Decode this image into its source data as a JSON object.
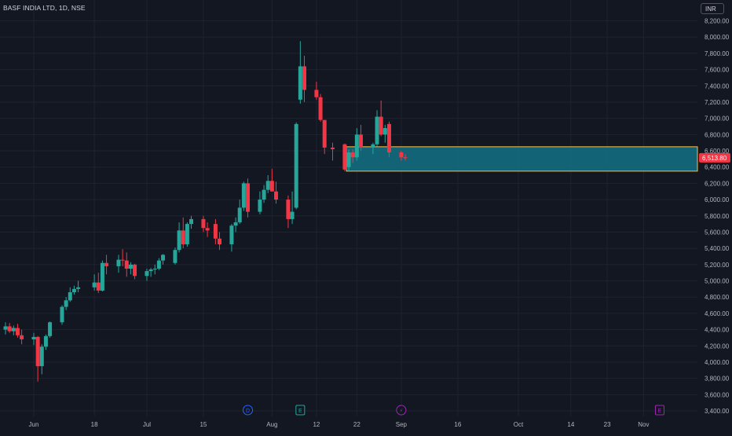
{
  "header": {
    "title": "BASF INDIA LTD, 1D, NSE",
    "currency": "INR"
  },
  "colors": {
    "background": "#131722",
    "grid": "#1f2330",
    "axis_text": "#b2b5be",
    "up": "#26a69a",
    "down": "#f23645",
    "zone_fill": "#137184",
    "zone_border": "#f7c04a",
    "price_label": "#f23645",
    "event_dividend": "#2962ff",
    "event_earnings_past": "#26a69a",
    "event_split": "#9c27b0",
    "event_earnings_future": "#9c27b0"
  },
  "chart_data": {
    "type": "candlestick",
    "y_axis": {
      "min": 3400,
      "max": 8200,
      "step": 200,
      "tick_labels": [
        "3,400.00",
        "3,600.00",
        "3,800.00",
        "4,000.00",
        "4,200.00",
        "4,400.00",
        "4,600.00",
        "4,800.00",
        "5,000.00",
        "5,200.00",
        "5,400.00",
        "5,600.00",
        "5,800.00",
        "6,000.00",
        "6,200.00",
        "6,400.00",
        "6,600.00",
        "6,800.00",
        "7,000.00",
        "7,200.00",
        "7,400.00",
        "7,600.00",
        "7,800.00",
        "8,000.00",
        "8,200.00"
      ]
    },
    "x_axis": {
      "tick_labels": [
        {
          "label": "Jun",
          "date": "2024-06-03"
        },
        {
          "label": "18",
          "date": "2024-06-18"
        },
        {
          "label": "Jul",
          "date": "2024-07-01"
        },
        {
          "label": "15",
          "date": "2024-07-15"
        },
        {
          "label": "Aug",
          "date": "2024-08-01"
        },
        {
          "label": "12",
          "date": "2024-08-12"
        },
        {
          "label": "22",
          "date": "2024-08-22"
        },
        {
          "label": "Sep",
          "date": "2024-09-02"
        },
        {
          "label": "16",
          "date": "2024-09-16"
        },
        {
          "label": "Oct",
          "date": "2024-10-01"
        },
        {
          "label": "14",
          "date": "2024-10-14"
        },
        {
          "label": "23",
          "date": "2024-10-23"
        },
        {
          "label": "Nov",
          "date": "2024-11-01"
        }
      ]
    },
    "last_price": 6513.8,
    "last_price_label": "6,513.80",
    "zone": {
      "top": 6650,
      "bottom": 6350,
      "start_date": "2024-08-20"
    },
    "events": [
      {
        "type": "dividend",
        "label": "D",
        "date": "2024-07-26"
      },
      {
        "type": "earnings",
        "label": "E",
        "date": "2024-08-08"
      },
      {
        "type": "split",
        "label": "⚡",
        "date": "2024-09-02"
      },
      {
        "type": "earnings",
        "label": "E",
        "date": "2024-11-05"
      }
    ],
    "candles": [
      {
        "d": "2024-05-27",
        "o": 4400,
        "h": 4490,
        "l": 4340,
        "c": 4440
      },
      {
        "d": "2024-05-28",
        "o": 4440,
        "h": 4480,
        "l": 4360,
        "c": 4380
      },
      {
        "d": "2024-05-29",
        "o": 4380,
        "h": 4450,
        "l": 4330,
        "c": 4420
      },
      {
        "d": "2024-05-30",
        "o": 4420,
        "h": 4470,
        "l": 4300,
        "c": 4330
      },
      {
        "d": "2024-05-31",
        "o": 4330,
        "h": 4400,
        "l": 4220,
        "c": 4280
      },
      {
        "d": "2024-06-03",
        "o": 4280,
        "h": 4360,
        "l": 4210,
        "c": 4310
      },
      {
        "d": "2024-06-04",
        "o": 4310,
        "h": 4320,
        "l": 3760,
        "c": 3950
      },
      {
        "d": "2024-06-05",
        "o": 3950,
        "h": 4220,
        "l": 3850,
        "c": 4190
      },
      {
        "d": "2024-06-06",
        "o": 4190,
        "h": 4340,
        "l": 4150,
        "c": 4320
      },
      {
        "d": "2024-06-07",
        "o": 4320,
        "h": 4500,
        "l": 4300,
        "c": 4490
      },
      {
        "d": "2024-06-10",
        "o": 4490,
        "h": 4700,
        "l": 4460,
        "c": 4680
      },
      {
        "d": "2024-06-11",
        "o": 4680,
        "h": 4800,
        "l": 4640,
        "c": 4760
      },
      {
        "d": "2024-06-12",
        "o": 4760,
        "h": 4920,
        "l": 4740,
        "c": 4860
      },
      {
        "d": "2024-06-13",
        "o": 4860,
        "h": 4940,
        "l": 4830,
        "c": 4900
      },
      {
        "d": "2024-06-14",
        "o": 4900,
        "h": 5000,
        "l": 4860,
        "c": 4920
      },
      {
        "d": "2024-06-18",
        "o": 4920,
        "h": 5080,
        "l": 4880,
        "c": 4980
      },
      {
        "d": "2024-06-19",
        "o": 4980,
        "h": 5100,
        "l": 4850,
        "c": 4880
      },
      {
        "d": "2024-06-20",
        "o": 4880,
        "h": 5250,
        "l": 4870,
        "c": 5220
      },
      {
        "d": "2024-06-21",
        "o": 5220,
        "h": 5320,
        "l": 5080,
        "c": 5180
      },
      {
        "d": "2024-06-24",
        "o": 5180,
        "h": 5320,
        "l": 5100,
        "c": 5260
      },
      {
        "d": "2024-06-25",
        "o": 5260,
        "h": 5390,
        "l": 5180,
        "c": 5250
      },
      {
        "d": "2024-06-26",
        "o": 5250,
        "h": 5350,
        "l": 5050,
        "c": 5150
      },
      {
        "d": "2024-06-27",
        "o": 5150,
        "h": 5230,
        "l": 5080,
        "c": 5200
      },
      {
        "d": "2024-06-28",
        "o": 5200,
        "h": 5210,
        "l": 5020,
        "c": 5060
      },
      {
        "d": "2024-07-01",
        "o": 5060,
        "h": 5150,
        "l": 5000,
        "c": 5120
      },
      {
        "d": "2024-07-02",
        "o": 5120,
        "h": 5160,
        "l": 5050,
        "c": 5140
      },
      {
        "d": "2024-07-03",
        "o": 5140,
        "h": 5200,
        "l": 5080,
        "c": 5150
      },
      {
        "d": "2024-07-04",
        "o": 5150,
        "h": 5280,
        "l": 5130,
        "c": 5250
      },
      {
        "d": "2024-07-05",
        "o": 5250,
        "h": 5330,
        "l": 5200,
        "c": 5320
      },
      {
        "d": "2024-07-08",
        "o": 5220,
        "h": 5410,
        "l": 5200,
        "c": 5380
      },
      {
        "d": "2024-07-09",
        "o": 5380,
        "h": 5720,
        "l": 5350,
        "c": 5620
      },
      {
        "d": "2024-07-10",
        "o": 5620,
        "h": 5780,
        "l": 5400,
        "c": 5450
      },
      {
        "d": "2024-07-11",
        "o": 5450,
        "h": 5720,
        "l": 5420,
        "c": 5700
      },
      {
        "d": "2024-07-12",
        "o": 5700,
        "h": 5800,
        "l": 5640,
        "c": 5760
      },
      {
        "d": "2024-07-15",
        "o": 5760,
        "h": 5800,
        "l": 5600,
        "c": 5650
      },
      {
        "d": "2024-07-16",
        "o": 5650,
        "h": 5720,
        "l": 5540,
        "c": 5620
      },
      {
        "d": "2024-07-18",
        "o": 5700,
        "h": 5760,
        "l": 5450,
        "c": 5520
      },
      {
        "d": "2024-07-19",
        "o": 5520,
        "h": 5600,
        "l": 5380,
        "c": 5450
      },
      {
        "d": "2024-07-22",
        "o": 5450,
        "h": 5700,
        "l": 5360,
        "c": 5680
      },
      {
        "d": "2024-07-23",
        "o": 5680,
        "h": 5780,
        "l": 5600,
        "c": 5720
      },
      {
        "d": "2024-07-24",
        "o": 5720,
        "h": 6000,
        "l": 5700,
        "c": 5900
      },
      {
        "d": "2024-07-25",
        "o": 5900,
        "h": 6220,
        "l": 5860,
        "c": 6200
      },
      {
        "d": "2024-07-26",
        "o": 6200,
        "h": 6260,
        "l": 5780,
        "c": 5850
      },
      {
        "d": "2024-07-29",
        "o": 5850,
        "h": 6100,
        "l": 5820,
        "c": 6000
      },
      {
        "d": "2024-07-30",
        "o": 6000,
        "h": 6180,
        "l": 5960,
        "c": 6120
      },
      {
        "d": "2024-07-31",
        "o": 6120,
        "h": 6300,
        "l": 6080,
        "c": 6230
      },
      {
        "d": "2024-08-01",
        "o": 6230,
        "h": 6380,
        "l": 6100,
        "c": 6100
      },
      {
        "d": "2024-08-02",
        "o": 6100,
        "h": 6220,
        "l": 5950,
        "c": 6000
      },
      {
        "d": "2024-08-05",
        "o": 6000,
        "h": 6050,
        "l": 5650,
        "c": 5760
      },
      {
        "d": "2024-08-06",
        "o": 5760,
        "h": 6100,
        "l": 5700,
        "c": 5850
      },
      {
        "d": "2024-08-07",
        "o": 5900,
        "h": 6950,
        "l": 5880,
        "c": 6930
      },
      {
        "d": "2024-08-08",
        "o": 7230,
        "h": 7950,
        "l": 7180,
        "c": 7640
      },
      {
        "d": "2024-08-09",
        "o": 7640,
        "h": 7770,
        "l": 7200,
        "c": 7350
      },
      {
        "d": "2024-08-12",
        "o": 7350,
        "h": 7450,
        "l": 7230,
        "c": 7260
      },
      {
        "d": "2024-08-13",
        "o": 7260,
        "h": 7300,
        "l": 6960,
        "c": 6980
      },
      {
        "d": "2024-08-14",
        "o": 6980,
        "h": 6980,
        "l": 6560,
        "c": 6640
      },
      {
        "d": "2024-08-16",
        "o": 6640,
        "h": 6700,
        "l": 6480,
        "c": 6620
      },
      {
        "d": "2024-08-19",
        "o": 6680,
        "h": 6690,
        "l": 6350,
        "c": 6370
      },
      {
        "d": "2024-08-20",
        "o": 6400,
        "h": 6620,
        "l": 6350,
        "c": 6580
      },
      {
        "d": "2024-08-21",
        "o": 6580,
        "h": 6620,
        "l": 6450,
        "c": 6520
      },
      {
        "d": "2024-08-22",
        "o": 6520,
        "h": 6880,
        "l": 6480,
        "c": 6800
      },
      {
        "d": "2024-08-23",
        "o": 6800,
        "h": 6920,
        "l": 6600,
        "c": 6640
      },
      {
        "d": "2024-08-26",
        "o": 6640,
        "h": 6700,
        "l": 6560,
        "c": 6680
      },
      {
        "d": "2024-08-27",
        "o": 6680,
        "h": 7100,
        "l": 6650,
        "c": 7020
      },
      {
        "d": "2024-08-28",
        "o": 7020,
        "h": 7220,
        "l": 6780,
        "c": 6800
      },
      {
        "d": "2024-08-29",
        "o": 6800,
        "h": 6920,
        "l": 6700,
        "c": 6880
      },
      {
        "d": "2024-08-30",
        "o": 6930,
        "h": 6960,
        "l": 6520,
        "c": 6580
      },
      {
        "d": "2024-09-02",
        "o": 6580,
        "h": 6600,
        "l": 6480,
        "c": 6520
      },
      {
        "d": "2024-09-03",
        "o": 6520,
        "h": 6560,
        "l": 6480,
        "c": 6513.8
      }
    ]
  }
}
